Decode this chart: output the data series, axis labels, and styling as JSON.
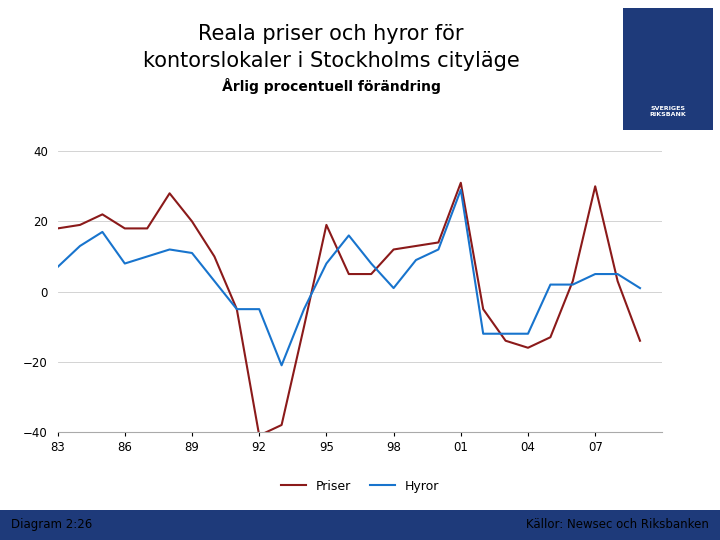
{
  "title_line1": "Reala priser och hyror för",
  "title_line2": "kontorslokaler i Stockholms cityläge",
  "subtitle": "Årlig procentuell förändring",
  "diagram_label": "Diagram 2:26",
  "source_label": "Källor: Newsec och Riksbanken",
  "legend_priser": "Priser",
  "legend_hyror": "Hyror",
  "priser_color": "#8B1A1A",
  "hyror_color": "#1874CD",
  "background_color": "#FFFFFF",
  "footer_color": "#1E3A7A",
  "logo_color": "#1E3A7A",
  "ylim": [
    -40,
    40
  ],
  "yticks": [
    -40,
    -20,
    0,
    20,
    40
  ],
  "xticklabels": [
    "83",
    "86",
    "89",
    "92",
    "95",
    "98",
    "01",
    "04",
    "07"
  ],
  "x_vals": [
    83,
    84,
    85,
    86,
    87,
    88,
    89,
    90,
    91,
    92,
    93,
    94,
    95,
    96,
    97,
    98,
    99,
    100,
    101,
    102,
    103,
    104,
    105,
    106,
    107,
    108,
    109
  ],
  "priser": [
    18,
    19,
    22,
    18,
    18,
    28,
    20,
    10,
    -5,
    -41,
    -38,
    -10,
    19,
    5,
    5,
    12,
    13,
    14,
    31,
    -5,
    -14,
    -16,
    -13,
    3,
    30,
    3,
    -14
  ],
  "hyror": [
    7,
    13,
    17,
    8,
    10,
    12,
    11,
    3,
    -5,
    -5,
    -21,
    -5,
    8,
    16,
    8,
    1,
    9,
    12,
    29,
    -12,
    -12,
    -12,
    2,
    2,
    5,
    5,
    1
  ],
  "grid_color": "#CCCCCC",
  "line_width": 1.5,
  "title_fontsize": 15,
  "subtitle_fontsize": 10
}
